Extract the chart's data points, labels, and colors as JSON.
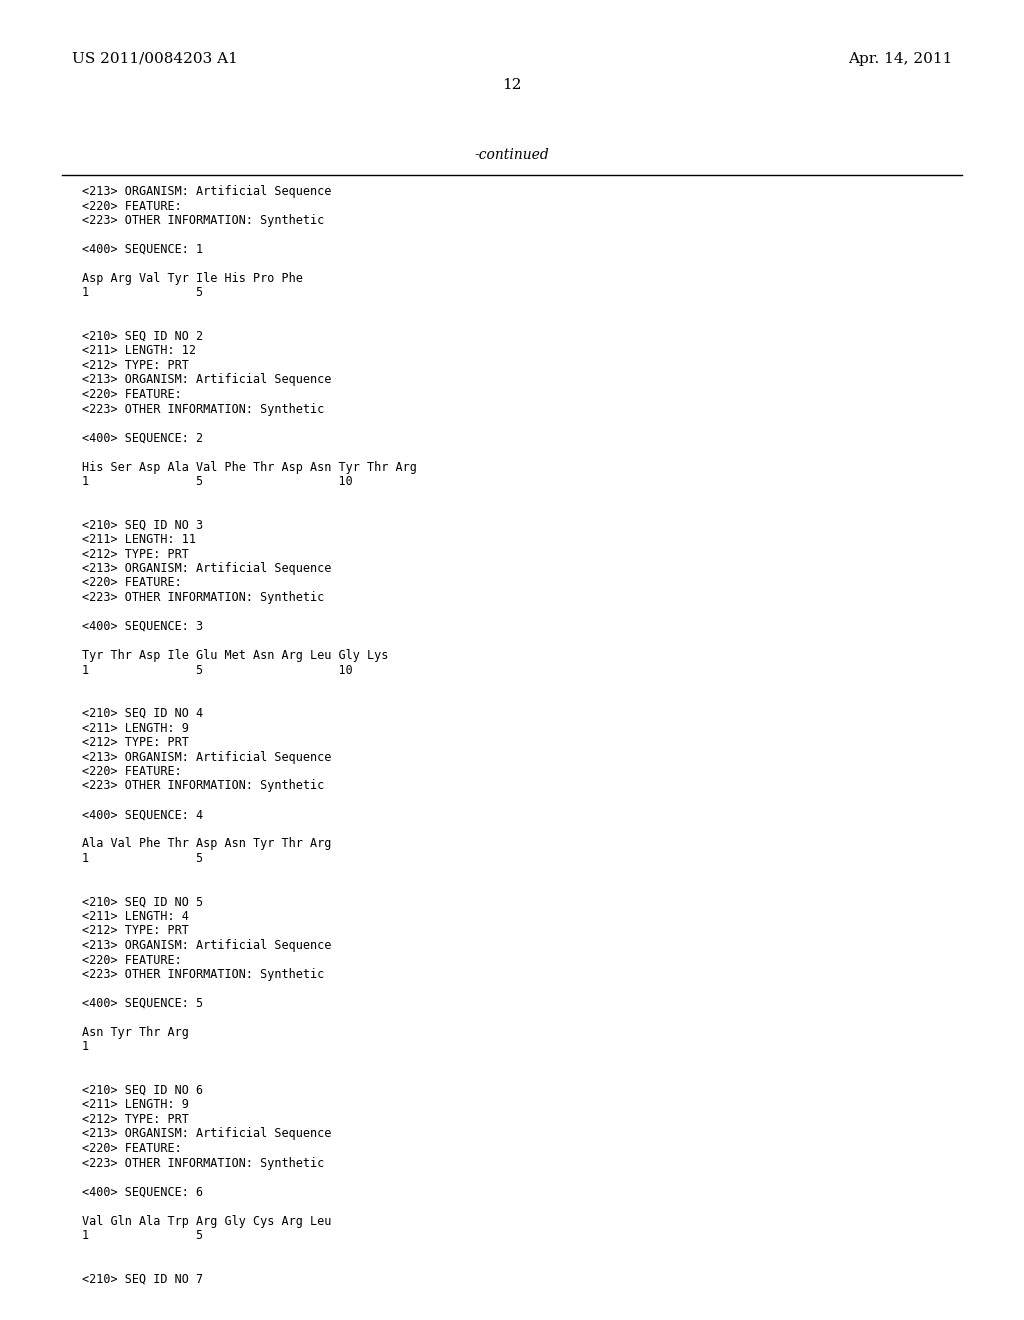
{
  "header_left": "US 2011/0084203 A1",
  "header_right": "Apr. 14, 2011",
  "page_number": "12",
  "continued_label": "-continued",
  "background_color": "#ffffff",
  "text_color": "#000000",
  "lines": [
    "<213> ORGANISM: Artificial Sequence",
    "<220> FEATURE:",
    "<223> OTHER INFORMATION: Synthetic",
    "",
    "<400> SEQUENCE: 1",
    "",
    "Asp Arg Val Tyr Ile His Pro Phe",
    "1               5",
    "",
    "",
    "<210> SEQ ID NO 2",
    "<211> LENGTH: 12",
    "<212> TYPE: PRT",
    "<213> ORGANISM: Artificial Sequence",
    "<220> FEATURE:",
    "<223> OTHER INFORMATION: Synthetic",
    "",
    "<400> SEQUENCE: 2",
    "",
    "His Ser Asp Ala Val Phe Thr Asp Asn Tyr Thr Arg",
    "1               5                   10",
    "",
    "",
    "<210> SEQ ID NO 3",
    "<211> LENGTH: 11",
    "<212> TYPE: PRT",
    "<213> ORGANISM: Artificial Sequence",
    "<220> FEATURE:",
    "<223> OTHER INFORMATION: Synthetic",
    "",
    "<400> SEQUENCE: 3",
    "",
    "Tyr Thr Asp Ile Glu Met Asn Arg Leu Gly Lys",
    "1               5                   10",
    "",
    "",
    "<210> SEQ ID NO 4",
    "<211> LENGTH: 9",
    "<212> TYPE: PRT",
    "<213> ORGANISM: Artificial Sequence",
    "<220> FEATURE:",
    "<223> OTHER INFORMATION: Synthetic",
    "",
    "<400> SEQUENCE: 4",
    "",
    "Ala Val Phe Thr Asp Asn Tyr Thr Arg",
    "1               5",
    "",
    "",
    "<210> SEQ ID NO 5",
    "<211> LENGTH: 4",
    "<212> TYPE: PRT",
    "<213> ORGANISM: Artificial Sequence",
    "<220> FEATURE:",
    "<223> OTHER INFORMATION: Synthetic",
    "",
    "<400> SEQUENCE: 5",
    "",
    "Asn Tyr Thr Arg",
    "1",
    "",
    "",
    "<210> SEQ ID NO 6",
    "<211> LENGTH: 9",
    "<212> TYPE: PRT",
    "<213> ORGANISM: Artificial Sequence",
    "<220> FEATURE:",
    "<223> OTHER INFORMATION: Synthetic",
    "",
    "<400> SEQUENCE: 6",
    "",
    "Val Gln Ala Trp Arg Gly Cys Arg Leu",
    "1               5",
    "",
    "",
    "<210> SEQ ID NO 7"
  ],
  "fig_width": 10.24,
  "fig_height": 13.2,
  "dpi": 100
}
